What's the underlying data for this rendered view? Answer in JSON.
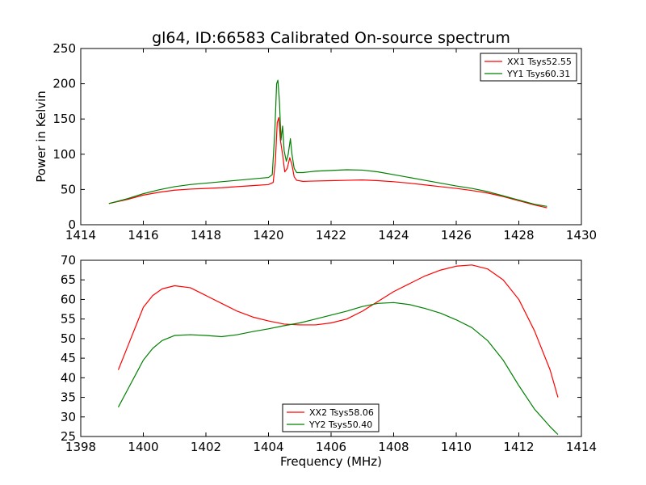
{
  "title": "gl64, ID:66583 Calibrated On-source spectrum",
  "chart_data": [
    {
      "type": "line",
      "title": "gl64, ID:66583 Calibrated On-source spectrum",
      "xlabel": "",
      "ylabel": "Power in Kelvin",
      "xlim": [
        1414,
        1430
      ],
      "ylim": [
        0,
        250
      ],
      "xticks": [
        "1414",
        "1416",
        "1418",
        "1420",
        "1422",
        "1424",
        "1426",
        "1428",
        "1430"
      ],
      "yticks": [
        "0",
        "50",
        "100",
        "150",
        "200",
        "250"
      ],
      "grid": false,
      "legend": "top-right",
      "series": [
        {
          "name": "XX1 Tsys52.55",
          "color": "#ff0000",
          "x": [
            1414.9,
            1415.5,
            1416,
            1416.5,
            1417,
            1417.5,
            1418,
            1418.5,
            1419,
            1419.5,
            1420,
            1420.15,
            1420.22,
            1420.28,
            1420.33,
            1420.38,
            1420.45,
            1420.52,
            1420.6,
            1420.68,
            1420.75,
            1420.82,
            1420.9,
            1421.1,
            1421.5,
            1422,
            1422.5,
            1423,
            1423.5,
            1424,
            1424.5,
            1425,
            1425.5,
            1426,
            1426.5,
            1427,
            1427.5,
            1428,
            1428.5,
            1428.9
          ],
          "y": [
            30,
            36,
            42,
            46,
            49,
            50.5,
            51.5,
            52.5,
            54,
            55.5,
            57,
            60,
            90,
            145,
            152,
            120,
            100,
            75,
            80,
            95,
            85,
            68,
            63,
            61.5,
            62,
            62.5,
            63,
            63.5,
            62.5,
            61,
            59,
            56.5,
            54,
            51.5,
            48.5,
            45,
            40,
            34,
            28,
            24
          ]
        },
        {
          "name": "YY1 Tsys60.31",
          "color": "#008000",
          "x": [
            1414.9,
            1415.5,
            1416,
            1416.5,
            1417,
            1417.5,
            1418,
            1418.5,
            1419,
            1419.5,
            1420,
            1420.12,
            1420.2,
            1420.26,
            1420.3,
            1420.35,
            1420.4,
            1420.45,
            1420.5,
            1420.57,
            1420.63,
            1420.7,
            1420.75,
            1420.82,
            1420.9,
            1421.1,
            1421.5,
            1422,
            1422.5,
            1423,
            1423.5,
            1424,
            1424.5,
            1425,
            1425.5,
            1426,
            1426.5,
            1427,
            1427.5,
            1428,
            1428.5,
            1428.9
          ],
          "y": [
            30,
            37,
            44,
            49.5,
            54,
            57,
            59,
            61,
            63,
            65,
            67,
            71,
            130,
            200,
            205,
            175,
            120,
            140,
            105,
            90,
            100,
            122,
            100,
            80,
            74,
            74,
            76,
            77,
            78,
            77.5,
            75,
            71,
            67,
            63,
            59,
            55,
            51.5,
            47,
            41,
            35,
            29,
            26
          ]
        }
      ]
    },
    {
      "type": "line",
      "title": "",
      "xlabel": "Frequency (MHz)",
      "ylabel": "",
      "xlim": [
        1398,
        1414
      ],
      "ylim": [
        25,
        70
      ],
      "xticks": [
        "1398",
        "1400",
        "1402",
        "1404",
        "1406",
        "1408",
        "1410",
        "1412",
        "1414"
      ],
      "yticks": [
        "25",
        "30",
        "35",
        "40",
        "45",
        "50",
        "55",
        "60",
        "65",
        "70"
      ],
      "grid": false,
      "legend": "lower-center",
      "series": [
        {
          "name": "XX2 Tsys58.06",
          "color": "#ff0000",
          "x": [
            1399.2,
            1399.5,
            1399.8,
            1400,
            1400.3,
            1400.6,
            1401,
            1401.5,
            1402,
            1402.5,
            1403,
            1403.5,
            1404,
            1404.5,
            1405,
            1405.5,
            1406,
            1406.5,
            1407,
            1407.5,
            1408,
            1408.5,
            1409,
            1409.5,
            1410,
            1410.5,
            1411,
            1411.5,
            1412,
            1412.5,
            1413,
            1413.25
          ],
          "y": [
            42,
            48,
            54,
            58,
            61,
            62.7,
            63.5,
            63,
            61,
            59,
            57,
            55.5,
            54.5,
            53.7,
            53.5,
            53.5,
            54,
            55,
            57,
            59.5,
            62,
            64,
            66,
            67.5,
            68.5,
            68.8,
            67.8,
            65,
            60,
            52,
            42,
            35
          ]
        },
        {
          "name": "YY2 Tsys50.40",
          "color": "#008000",
          "x": [
            1399.2,
            1399.5,
            1399.8,
            1400,
            1400.3,
            1400.6,
            1401,
            1401.5,
            1402,
            1402.5,
            1403,
            1403.5,
            1404,
            1404.5,
            1405,
            1405.5,
            1406,
            1406.5,
            1407,
            1407.5,
            1408,
            1408.5,
            1409,
            1409.5,
            1410,
            1410.5,
            1411,
            1411.5,
            1412,
            1412.5,
            1413,
            1413.25
          ],
          "y": [
            32.5,
            37,
            41.5,
            44.5,
            47.5,
            49.5,
            50.8,
            51,
            50.8,
            50.5,
            51,
            51.8,
            52.5,
            53.3,
            54,
            55,
            56,
            57,
            58.2,
            59,
            59.2,
            58.7,
            57.7,
            56.5,
            54.8,
            52.8,
            49.5,
            44.5,
            38,
            32,
            27.5,
            25.5
          ]
        }
      ]
    }
  ]
}
